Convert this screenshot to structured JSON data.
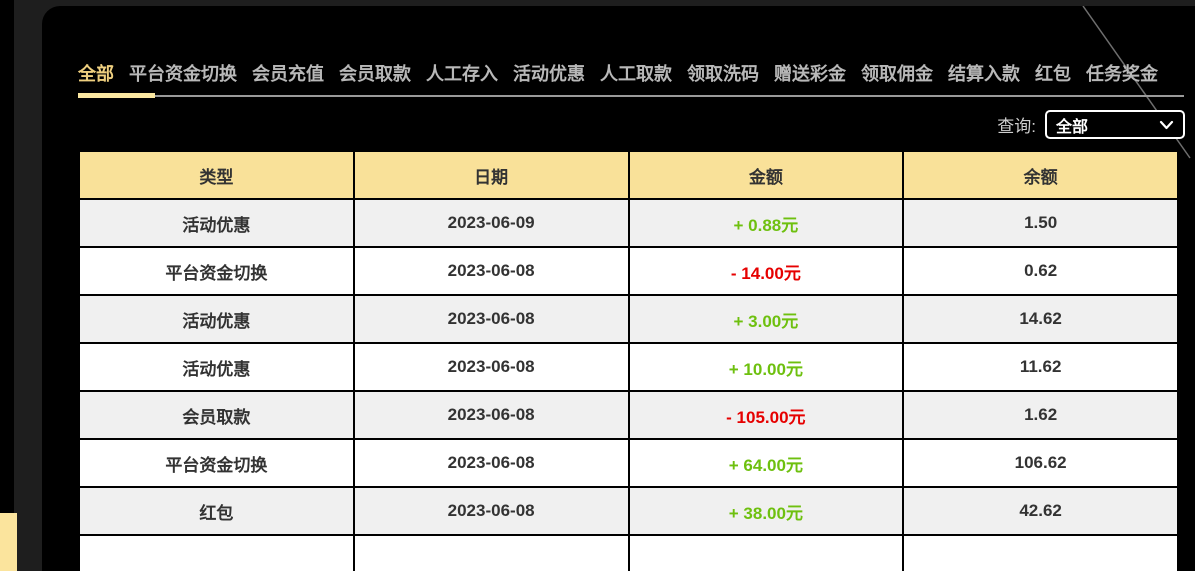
{
  "page": {
    "background": "#1e1e1e",
    "panel_background": "#000000",
    "decor_yellow": "#fbe49d"
  },
  "tabs": {
    "items": [
      {
        "label": "全部",
        "active": true
      },
      {
        "label": "平台资金切换",
        "active": false
      },
      {
        "label": "会员充值",
        "active": false
      },
      {
        "label": "会员取款",
        "active": false
      },
      {
        "label": "人工存入",
        "active": false
      },
      {
        "label": "活动优惠",
        "active": false
      },
      {
        "label": "人工取款",
        "active": false
      },
      {
        "label": "领取洗码",
        "active": false
      },
      {
        "label": "赠送彩金",
        "active": false
      },
      {
        "label": "领取佣金",
        "active": false
      },
      {
        "label": "结算入款",
        "active": false
      },
      {
        "label": "红包",
        "active": false
      },
      {
        "label": "任务奖金",
        "active": false
      }
    ],
    "active_color": "#eecf7f",
    "inactive_color": "#b8b8b8",
    "indicator_color": "#fbe7a1"
  },
  "query": {
    "label": "查询:",
    "selected": "全部"
  },
  "table": {
    "columns": [
      "类型",
      "日期",
      "金额",
      "余额"
    ],
    "header_background": "#f9e199",
    "text_color": "#333333",
    "positive_color": "#6ec00f",
    "negative_color": "#e60000",
    "rows": [
      {
        "type": "活动优惠",
        "date": "2023-06-09",
        "amount": "+ 0.88元",
        "direction": "positive",
        "balance": "1.50"
      },
      {
        "type": "平台资金切换",
        "date": "2023-06-08",
        "amount": "- 14.00元",
        "direction": "negative",
        "balance": "0.62"
      },
      {
        "type": "活动优惠",
        "date": "2023-06-08",
        "amount": "+ 3.00元",
        "direction": "positive",
        "balance": "14.62"
      },
      {
        "type": "活动优惠",
        "date": "2023-06-08",
        "amount": "+ 10.00元",
        "direction": "positive",
        "balance": "11.62"
      },
      {
        "type": "会员取款",
        "date": "2023-06-08",
        "amount": "- 105.00元",
        "direction": "negative",
        "balance": "1.62"
      },
      {
        "type": "平台资金切换",
        "date": "2023-06-08",
        "amount": "+ 64.00元",
        "direction": "positive",
        "balance": "106.62"
      },
      {
        "type": "红包",
        "date": "2023-06-08",
        "amount": "+ 38.00元",
        "direction": "positive",
        "balance": "42.62"
      },
      {
        "type": "",
        "date": "",
        "amount": "",
        "direction": "none",
        "balance": ""
      }
    ]
  }
}
